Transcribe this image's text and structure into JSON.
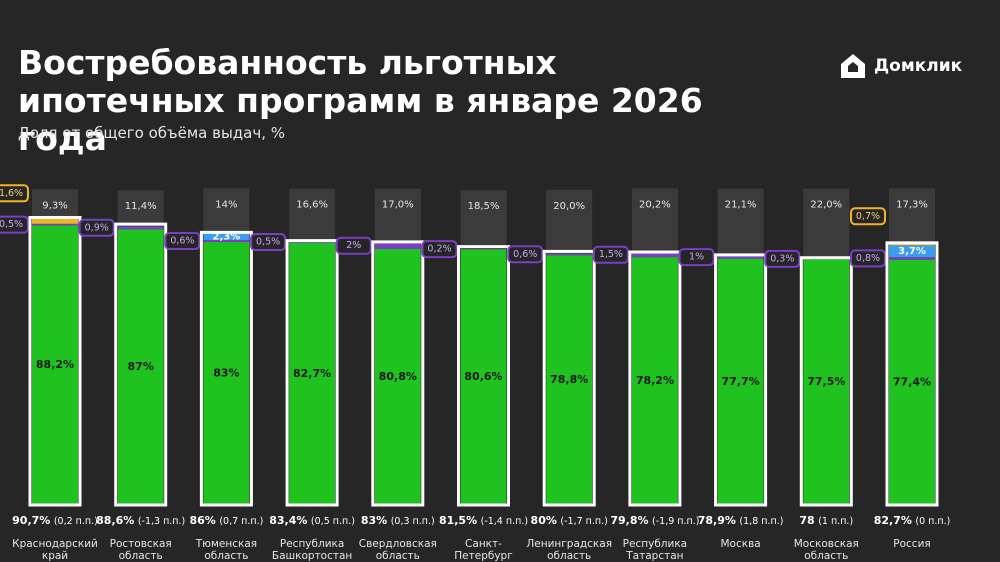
{
  "chart_data": {
    "type": "stacked_bar",
    "title": "Востребованность льготных ипотечных программ в январе 2026 года",
    "subtitle": "Доля от общего объёма выдач, %",
    "brand": "Домклик",
    "ylim": [
      0,
      100
    ],
    "categories": [
      "Краснодарский край",
      "Ростовская область",
      "Тюменская область",
      "Республика Башкортостан",
      "Свердловская область",
      "Санкт-Петербург",
      "Ленинградская область",
      "Республика Татарстан",
      "Москва",
      "Московская область",
      "Россия"
    ],
    "series": [
      {
        "color": "#1fc21f",
        "values": [
          88.2,
          87,
          83,
          82.7,
          80.8,
          80.6,
          78.8,
          78.2,
          77.7,
          77.5,
          77.4
        ],
        "value_labels": [
          "88,2%",
          "87%",
          "83%",
          "82,7%",
          "80,8%",
          "80,6%",
          "78,8%",
          "78,2%",
          "77,7%",
          "77,5%",
          "77,4%"
        ]
      },
      {
        "color": "#7a3fc6",
        "values": [
          0.5,
          0.9,
          0.6,
          0.5,
          2,
          0.2,
          0.6,
          1.5,
          1,
          0.3,
          0.8
        ],
        "value_labels": [
          "0,5%",
          "0,9%",
          "0,6%",
          "0,5%",
          "2%",
          "0,2%",
          "0,6%",
          "1,5%",
          "1%",
          "0,3%",
          "0,8%"
        ]
      },
      {
        "color": "#3a9df0",
        "values": [
          null,
          null,
          2.3,
          null,
          null,
          null,
          null,
          null,
          null,
          null,
          3.7
        ],
        "value_labels": [
          null,
          null,
          "2,3%",
          null,
          null,
          null,
          null,
          null,
          null,
          null,
          "3,7%"
        ]
      },
      {
        "color": "#f2b22a",
        "values": [
          1.6,
          null,
          null,
          null,
          null,
          null,
          null,
          null,
          null,
          null,
          0.7
        ],
        "value_labels": [
          "1,6%",
          null,
          null,
          null,
          null,
          null,
          null,
          null,
          null,
          null,
          "0,7%"
        ]
      },
      {
        "color": "#3b3b3b",
        "values": [
          9.3,
          11.4,
          14,
          16.6,
          17.0,
          18.5,
          20.0,
          20.2,
          21.1,
          22.0,
          17.3
        ],
        "value_labels": [
          "9,3%",
          "11,4%",
          "14%",
          "16,6%",
          "17,0%",
          "18,5%",
          "20,0%",
          "20,2%",
          "21,1%",
          "22,0%",
          "17,3%"
        ]
      }
    ],
    "totals": {
      "values": [
        90.7,
        88.6,
        86,
        83.4,
        83,
        81.5,
        80,
        79.8,
        78.9,
        78,
        82.7
      ],
      "value_labels": [
        "90,7%",
        "88,6%",
        "86%",
        "83,4%",
        "83%",
        "81,5%",
        "80%",
        "79,8%",
        "78,9%",
        "78",
        "82,7%"
      ]
    },
    "changes": {
      "values": [
        0.2,
        -1.3,
        0.7,
        0.5,
        0.3,
        -1.4,
        -1.7,
        -1.9,
        1.8,
        1,
        0
      ],
      "value_labels": [
        "(0,2 п.п.)",
        "(-1,3 п.п.)",
        "(0,7 п.п.)",
        "(0,5 п.п.)",
        "(0,3 п.п.)",
        "(-1,4 п.п.)",
        "(-1,7 п.п.)",
        "(-1,9 п.п.)",
        "(1,8 п.п.)",
        "(1 п.п.)",
        "(0 п.п.)"
      ]
    }
  }
}
